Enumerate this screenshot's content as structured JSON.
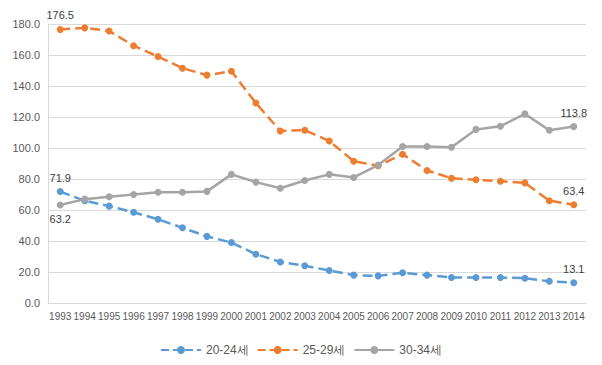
{
  "chart_data": {
    "type": "line",
    "categories": [
      "1993",
      "1994",
      "1995",
      "1996",
      "1997",
      "1998",
      "1999",
      "2000",
      "2001",
      "2002",
      "2003",
      "2004",
      "2005",
      "2006",
      "2007",
      "2008",
      "2009",
      "2010",
      "2011",
      "2012",
      "2013",
      "2014"
    ],
    "series": [
      {
        "name": "20-24세",
        "color": "#5b9bd5",
        "line_style": "dashed",
        "marker": "circle",
        "values": [
          71.9,
          66,
          62.5,
          58.5,
          54,
          48.5,
          43,
          39,
          31.5,
          26.5,
          24,
          21,
          18,
          17.5,
          19.5,
          18,
          16.5,
          16.5,
          16.5,
          16,
          14,
          13.1
        ],
        "value_labels": [
          "71.9",
          null,
          null,
          null,
          null,
          null,
          null,
          null,
          null,
          null,
          null,
          null,
          null,
          null,
          null,
          null,
          null,
          null,
          null,
          null,
          null,
          "13.1"
        ]
      },
      {
        "name": "25-29세",
        "color": "#ed7d31",
        "line_style": "dashed",
        "marker": "circle",
        "values": [
          176.5,
          177.5,
          175.5,
          166,
          159,
          151.5,
          147,
          149.5,
          129,
          111,
          111.5,
          104.5,
          91.5,
          88.5,
          96,
          85.5,
          80.5,
          79.5,
          78.5,
          77.5,
          66,
          63.4
        ],
        "value_labels": [
          "176.5",
          null,
          null,
          null,
          null,
          null,
          null,
          null,
          null,
          null,
          null,
          null,
          null,
          null,
          null,
          null,
          null,
          null,
          null,
          null,
          null,
          "63.4"
        ]
      },
      {
        "name": "30-34세",
        "color": "#a5a5a5",
        "line_style": "solid",
        "marker": "circle",
        "values": [
          63.2,
          67,
          68.5,
          70,
          71.5,
          71.5,
          72,
          83,
          78,
          74,
          79,
          83,
          81,
          89,
          101,
          101,
          100.5,
          112,
          114,
          122,
          111.5,
          113.8
        ],
        "value_labels": [
          "63.2",
          null,
          null,
          null,
          null,
          null,
          null,
          null,
          null,
          null,
          null,
          null,
          null,
          null,
          null,
          null,
          null,
          null,
          null,
          null,
          null,
          "113.8"
        ]
      }
    ],
    "ylim": [
      0,
      180
    ],
    "yticks": [
      {
        "value": 0,
        "label": "0.0"
      },
      {
        "value": 20,
        "label": "20.0"
      },
      {
        "value": 40,
        "label": "40.0"
      },
      {
        "value": 60,
        "label": "60.0"
      },
      {
        "value": 80,
        "label": "80.0"
      },
      {
        "value": 100,
        "label": "100.0"
      },
      {
        "value": 120,
        "label": "120.0"
      },
      {
        "value": 140,
        "label": "140.0"
      },
      {
        "value": 160,
        "label": "160.0"
      },
      {
        "value": 180,
        "label": "180.0"
      }
    ],
    "grid": true,
    "legend": "bottom",
    "data_labels": true
  }
}
